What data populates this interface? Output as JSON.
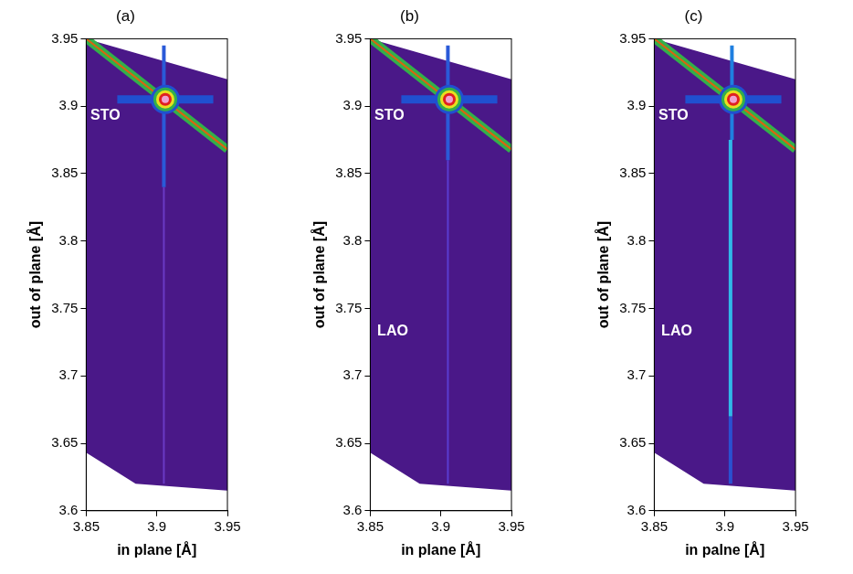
{
  "chart_data": [
    {
      "type": "heatmap",
      "title": "(a)",
      "x_label": "in plane [Å]",
      "y_label": "out of plane [Å]",
      "xlim": [
        3.85,
        3.95
      ],
      "ylim": [
        3.6,
        3.95
      ],
      "xticks": [
        3.85,
        3.9,
        3.95
      ],
      "yticks": [
        3.6,
        3.65,
        3.7,
        3.75,
        3.8,
        3.85,
        3.9,
        3.95
      ],
      "grid": false,
      "series": [
        {
          "type": "region",
          "color": "#4a1888",
          "values": [
            [
              3.85,
              3.95
            ],
            [
              3.95,
              3.92
            ],
            [
              3.95,
              3.615
            ],
            [
              3.885,
              3.62
            ],
            [
              3.85,
              3.643
            ],
            [
              3.85,
              3.95
            ]
          ]
        },
        {
          "type": "streak",
          "line_style": "fine",
          "color": "#6a3ac4",
          "values": [
            [
              3.905,
              3.84
            ],
            [
              3.905,
              3.62
            ]
          ]
        },
        {
          "type": "streak",
          "line_style": "medium",
          "color": "#2a5ad8",
          "values": [
            [
              3.905,
              3.945
            ],
            [
              3.905,
              3.84
            ]
          ]
        },
        {
          "type": "streak",
          "line_style": "broad",
          "color": "#2050d0",
          "values": [
            [
              3.872,
              3.905
            ],
            [
              3.94,
              3.905
            ]
          ]
        },
        {
          "type": "streak",
          "line_style": "broad",
          "color": "#33b04a",
          "values": [
            [
              3.85,
              3.95
            ],
            [
              3.95,
              3.868
            ]
          ]
        },
        {
          "type": "streak",
          "line_style": "fine",
          "color": "#e06010",
          "values": [
            [
              3.85,
              3.95
            ],
            [
              3.95,
              3.868
            ]
          ]
        },
        {
          "type": "peak",
          "colors": [
            "#2050d0",
            "#33b04a",
            "#e8e020",
            "#e02020",
            "#f0a0d0"
          ],
          "values": [
            [
              3.906,
              3.905
            ],
            [
              3.906,
              3.905
            ],
            [
              3.906,
              3.905
            ],
            [
              3.906,
              3.905
            ],
            [
              3.906,
              3.905
            ]
          ]
        }
      ],
      "annotations": [
        {
          "text": "STO",
          "x": 3.853,
          "y": 3.893
        }
      ]
    },
    {
      "type": "heatmap",
      "title": "(b)",
      "x_label": "in plane [Å]",
      "y_label": "out of plane [Å]",
      "xlim": [
        3.85,
        3.95
      ],
      "ylim": [
        3.6,
        3.95
      ],
      "xticks": [
        3.85,
        3.9,
        3.95
      ],
      "yticks": [
        3.6,
        3.65,
        3.7,
        3.75,
        3.8,
        3.85,
        3.9,
        3.95
      ],
      "grid": false,
      "series": [
        {
          "type": "region",
          "color": "#4a1888",
          "values": [
            [
              3.85,
              3.95
            ],
            [
              3.95,
              3.92
            ],
            [
              3.95,
              3.615
            ],
            [
              3.885,
              3.62
            ],
            [
              3.85,
              3.643
            ],
            [
              3.85,
              3.95
            ]
          ]
        },
        {
          "type": "streak",
          "line_style": "fine",
          "color": "#5a3cd0",
          "values": [
            [
              3.905,
              3.86
            ],
            [
              3.905,
              3.62
            ]
          ]
        },
        {
          "type": "streak",
          "line_style": "medium",
          "color": "#2a5ad8",
          "values": [
            [
              3.905,
              3.945
            ],
            [
              3.905,
              3.86
            ]
          ]
        },
        {
          "type": "streak",
          "line_style": "broad",
          "color": "#2050d0",
          "values": [
            [
              3.872,
              3.905
            ],
            [
              3.94,
              3.905
            ]
          ]
        },
        {
          "type": "streak",
          "line_style": "broad",
          "color": "#33b04a",
          "values": [
            [
              3.85,
              3.95
            ],
            [
              3.95,
              3.868
            ]
          ]
        },
        {
          "type": "streak",
          "line_style": "fine",
          "color": "#e06010",
          "values": [
            [
              3.85,
              3.95
            ],
            [
              3.95,
              3.868
            ]
          ]
        },
        {
          "type": "peak",
          "colors": [
            "#2050d0",
            "#33b04a",
            "#e8e020",
            "#e02020",
            "#f0a0d0"
          ],
          "values": [
            [
              3.906,
              3.905
            ],
            [
              3.906,
              3.905
            ],
            [
              3.906,
              3.905
            ],
            [
              3.906,
              3.905
            ],
            [
              3.906,
              3.905
            ]
          ]
        }
      ],
      "annotations": [
        {
          "text": "STO",
          "x": 3.853,
          "y": 3.893
        },
        {
          "text": "LAO",
          "x": 3.855,
          "y": 3.733
        }
      ]
    },
    {
      "type": "heatmap",
      "title": "(c)",
      "x_label": "in palne [Å]",
      "y_label": "out of plane [Å]",
      "xlim": [
        3.85,
        3.95
      ],
      "ylim": [
        3.6,
        3.95
      ],
      "xticks": [
        3.85,
        3.9,
        3.95
      ],
      "yticks": [
        3.6,
        3.65,
        3.7,
        3.75,
        3.8,
        3.85,
        3.9,
        3.95
      ],
      "grid": false,
      "series": [
        {
          "type": "region",
          "color": "#4a1888",
          "values": [
            [
              3.85,
              3.95
            ],
            [
              3.95,
              3.92
            ],
            [
              3.95,
              3.615
            ],
            [
              3.885,
              3.62
            ],
            [
              3.85,
              3.643
            ],
            [
              3.85,
              3.95
            ]
          ]
        },
        {
          "type": "streak",
          "line_style": "medium",
          "color": "#2a50d0",
          "values": [
            [
              3.904,
              3.67
            ],
            [
              3.904,
              3.62
            ]
          ]
        },
        {
          "type": "streak",
          "line_style": "medium",
          "color": "#30b8e8",
          "values": [
            [
              3.904,
              3.875
            ],
            [
              3.904,
              3.67
            ]
          ]
        },
        {
          "type": "streak",
          "line_style": "medium",
          "color": "#1f7fe0",
          "values": [
            [
              3.905,
              3.945
            ],
            [
              3.905,
              3.875
            ]
          ]
        },
        {
          "type": "streak",
          "line_style": "broad",
          "color": "#2050d0",
          "values": [
            [
              3.872,
              3.905
            ],
            [
              3.94,
              3.905
            ]
          ]
        },
        {
          "type": "streak",
          "line_style": "broad",
          "color": "#33b04a",
          "values": [
            [
              3.85,
              3.95
            ],
            [
              3.95,
              3.868
            ]
          ]
        },
        {
          "type": "streak",
          "line_style": "fine",
          "color": "#e06010",
          "values": [
            [
              3.85,
              3.95
            ],
            [
              3.95,
              3.868
            ]
          ]
        },
        {
          "type": "peak",
          "colors": [
            "#2050d0",
            "#33b04a",
            "#e8e020",
            "#e02020",
            "#f0a0d0"
          ],
          "values": [
            [
              3.906,
              3.905
            ],
            [
              3.906,
              3.905
            ],
            [
              3.906,
              3.905
            ],
            [
              3.906,
              3.905
            ],
            [
              3.906,
              3.905
            ]
          ]
        }
      ],
      "annotations": [
        {
          "text": "STO",
          "x": 3.853,
          "y": 3.893
        },
        {
          "text": "LAO",
          "x": 3.855,
          "y": 3.733
        }
      ]
    }
  ]
}
